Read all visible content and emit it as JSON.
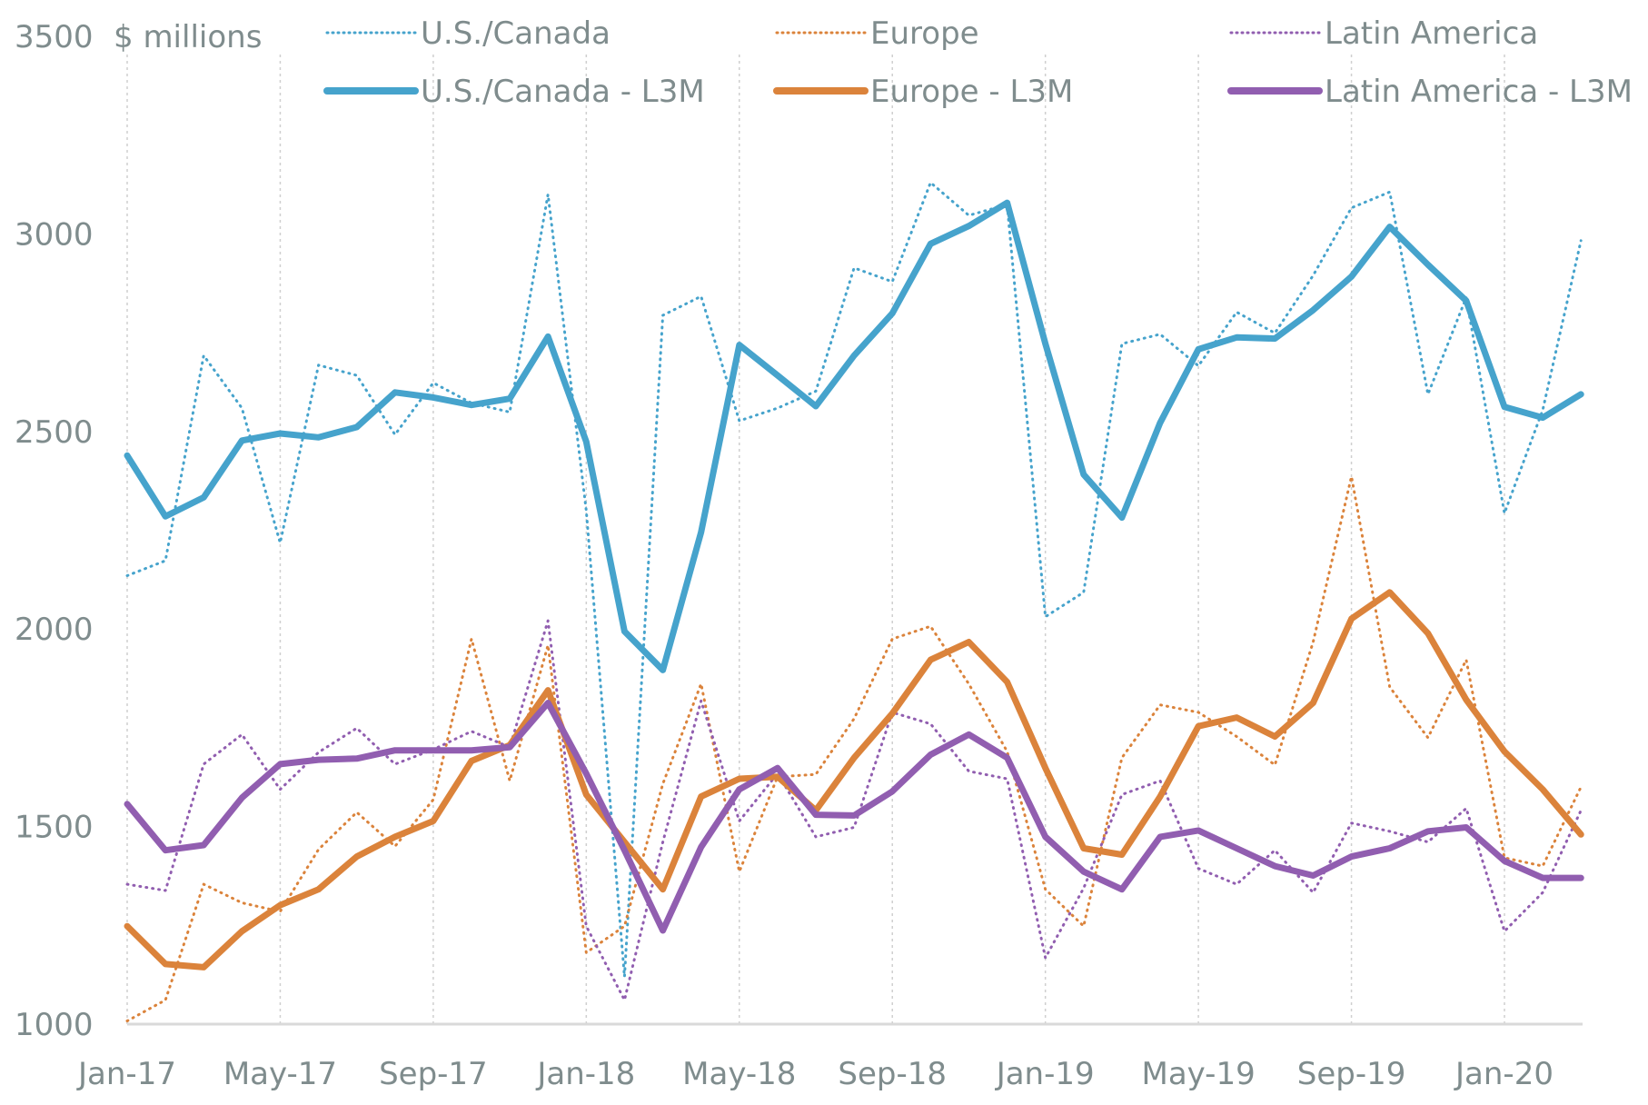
{
  "chart_data": {
    "type": "line",
    "title": "",
    "unit_label": "$ millions",
    "xlabel": "",
    "ylabel": "$ millions",
    "ylim": [
      1000,
      3500
    ],
    "yticks": [
      1000,
      1500,
      2000,
      2500,
      3000,
      3500
    ],
    "grid": "vertical dotted",
    "legend_position": "top",
    "x": [
      "Jan-17",
      "Feb-17",
      "Mar-17",
      "Apr-17",
      "May-17",
      "Jun-17",
      "Jul-17",
      "Aug-17",
      "Sep-17",
      "Oct-17",
      "Nov-17",
      "Dec-17",
      "Jan-18",
      "Feb-18",
      "Mar-18",
      "Apr-18",
      "May-18",
      "Jun-18",
      "Jul-18",
      "Aug-18",
      "Sep-18",
      "Oct-18",
      "Nov-18",
      "Dec-18",
      "Jan-19",
      "Feb-19",
      "Mar-19",
      "Apr-19",
      "May-19",
      "Jun-19",
      "Jul-19",
      "Aug-19",
      "Sep-19",
      "Oct-19",
      "Nov-19",
      "Dec-19",
      "Jan-20",
      "Feb-20",
      "Mar-20"
    ],
    "xtick_labels": [
      "Jan-17",
      "May-17",
      "Sep-17",
      "Jan-18",
      "May-18",
      "Sep-18",
      "Jan-19",
      "May-19",
      "Sep-19",
      "Jan-20"
    ],
    "series": [
      {
        "name": "U.S./Canada",
        "style": "dotted",
        "color": "#46a3cc",
        "values": [
          2135,
          2173,
          2692,
          2559,
          2218,
          2668,
          2642,
          2492,
          2623,
          2572,
          2549,
          3100,
          2300,
          1120,
          2794,
          2842,
          2527,
          2559,
          2602,
          2914,
          2879,
          3130,
          3047,
          3074,
          2031,
          2093,
          2722,
          2746,
          2666,
          2802,
          2749,
          2895,
          3066,
          3106,
          2594,
          2839,
          2293,
          2554,
          2983
        ]
      },
      {
        "name": "Europe",
        "style": "dotted",
        "color": "#db833b",
        "values": [
          1008,
          1061,
          1354,
          1307,
          1285,
          1442,
          1536,
          1450,
          1568,
          1975,
          1616,
          1959,
          1181,
          1248,
          1608,
          1861,
          1386,
          1626,
          1632,
          1773,
          1975,
          2007,
          1861,
          1690,
          1341,
          1248,
          1674,
          1808,
          1789,
          1728,
          1656,
          1967,
          2386,
          1853,
          1725,
          1922,
          1421,
          1400,
          1600
        ]
      },
      {
        "name": "Latin America",
        "style": "dotted",
        "color": "#915eb0",
        "values": [
          1354,
          1338,
          1658,
          1733,
          1594,
          1688,
          1749,
          1658,
          1695,
          1741,
          1701,
          2021,
          1248,
          1061,
          1461,
          1818,
          1514,
          1634,
          1474,
          1498,
          1789,
          1760,
          1640,
          1621,
          1168,
          1344,
          1581,
          1616,
          1394,
          1354,
          1440,
          1333,
          1509,
          1488,
          1461,
          1546,
          1235,
          1333,
          1541
        ]
      },
      {
        "name": "U.S./Canada - L3M",
        "style": "solid",
        "color": "#46a3cc",
        "values": [
          2439,
          2285,
          2333,
          2477,
          2495,
          2485,
          2511,
          2599,
          2586,
          2567,
          2583,
          2740,
          2474,
          1994,
          1896,
          2245,
          2719,
          2642,
          2564,
          2692,
          2799,
          2975,
          3020,
          3079,
          2722,
          2391,
          2282,
          2522,
          2708,
          2738,
          2735,
          2807,
          2892,
          3018,
          2922,
          2831,
          2562,
          2535,
          2594
        ]
      },
      {
        "name": "Europe - L3M",
        "style": "solid",
        "color": "#db833b",
        "values": [
          1248,
          1152,
          1144,
          1235,
          1301,
          1341,
          1424,
          1474,
          1514,
          1666,
          1706,
          1845,
          1581,
          1461,
          1341,
          1576,
          1621,
          1626,
          1541,
          1674,
          1786,
          1922,
          1967,
          1866,
          1648,
          1445,
          1429,
          1576,
          1754,
          1776,
          1728,
          1813,
          2026,
          2093,
          1989,
          1821,
          1690,
          1594,
          1480
        ]
      },
      {
        "name": "Latin America - L3M",
        "style": "solid",
        "color": "#915eb0",
        "values": [
          1557,
          1440,
          1453,
          1573,
          1658,
          1669,
          1672,
          1693,
          1693,
          1693,
          1701,
          1813,
          1634,
          1440,
          1237,
          1448,
          1594,
          1648,
          1530,
          1528,
          1589,
          1682,
          1733,
          1674,
          1474,
          1386,
          1341,
          1474,
          1490,
          1445,
          1400,
          1376,
          1424,
          1445,
          1488,
          1498,
          1413,
          1370,
          1370
        ]
      }
    ]
  }
}
